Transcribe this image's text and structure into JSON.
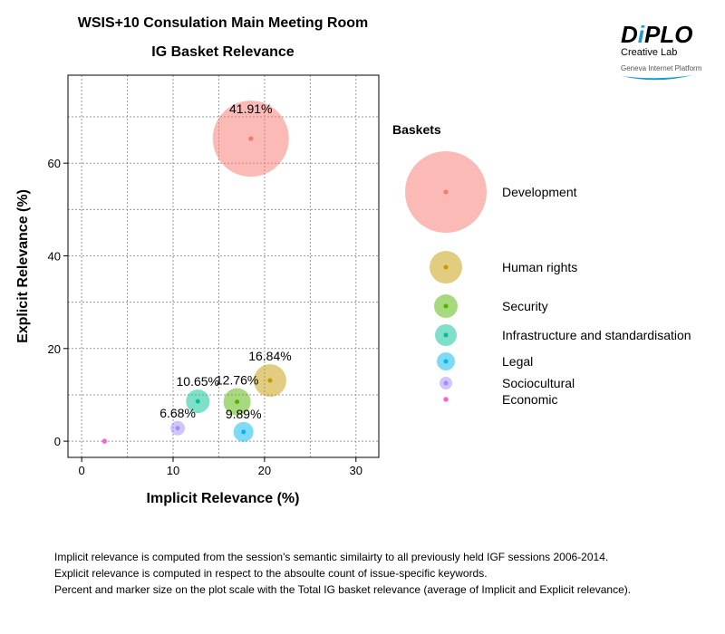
{
  "logo": {
    "brand": "DiPLO",
    "sub": "Creative Lab",
    "platform": "Geneva Internet Platform"
  },
  "chart_data": {
    "type": "scatter",
    "title": "WSIS+10 Consulation Main Meeting Room",
    "subtitle": "IG Basket Relevance",
    "xlabel": "Implicit Relevance (%)",
    "ylabel": "Explicit Relevance (%)",
    "xlim": [
      -1.5,
      32.5
    ],
    "ylim": [
      -3.5,
      79
    ],
    "xticks": [
      0,
      10,
      20,
      30
    ],
    "yticks": [
      0,
      20,
      40,
      60
    ],
    "grid": true,
    "legend_title": "Baskets",
    "legend_placement": "right",
    "series": [
      {
        "name": "Development",
        "x": 18.5,
        "y": 65.3,
        "label": "41.91%",
        "color": "#F8766D",
        "size": 42
      },
      {
        "name": "Human rights",
        "x": 20.6,
        "y": 13.1,
        "label": "16.84%",
        "color": "#C49A00",
        "size": 18
      },
      {
        "name": "Security",
        "x": 17.0,
        "y": 8.5,
        "label": "12.76%",
        "color": "#53B400",
        "size": 15
      },
      {
        "name": "Infrastructure and standardisation",
        "x": 12.7,
        "y": 8.6,
        "label": "10.65%",
        "color": "#00C094",
        "size": 13
      },
      {
        "name": "Legal",
        "x": 17.7,
        "y": 2.0,
        "label": "9.89%",
        "color": "#00B6EB",
        "size": 11
      },
      {
        "name": "Sociocultural",
        "x": 10.5,
        "y": 2.8,
        "label": "6.68%",
        "color": "#A58AFF",
        "size": 8
      },
      {
        "name": "Economic",
        "x": 2.5,
        "y": 0.0,
        "label": "",
        "color": "#FB61D7",
        "size": 3
      }
    ]
  },
  "notes": [
    "Implicit relevance is computed from the session's semantic similairty to all previously held IGF sessions 2006-2014.",
    "Explicit relevance is computed in respect to the absoulte count of issue-specific keywords.",
    "Percent and marker size on the plot scale with the Total IG basket relevance (average of Implicit and Explicit relevance)."
  ]
}
